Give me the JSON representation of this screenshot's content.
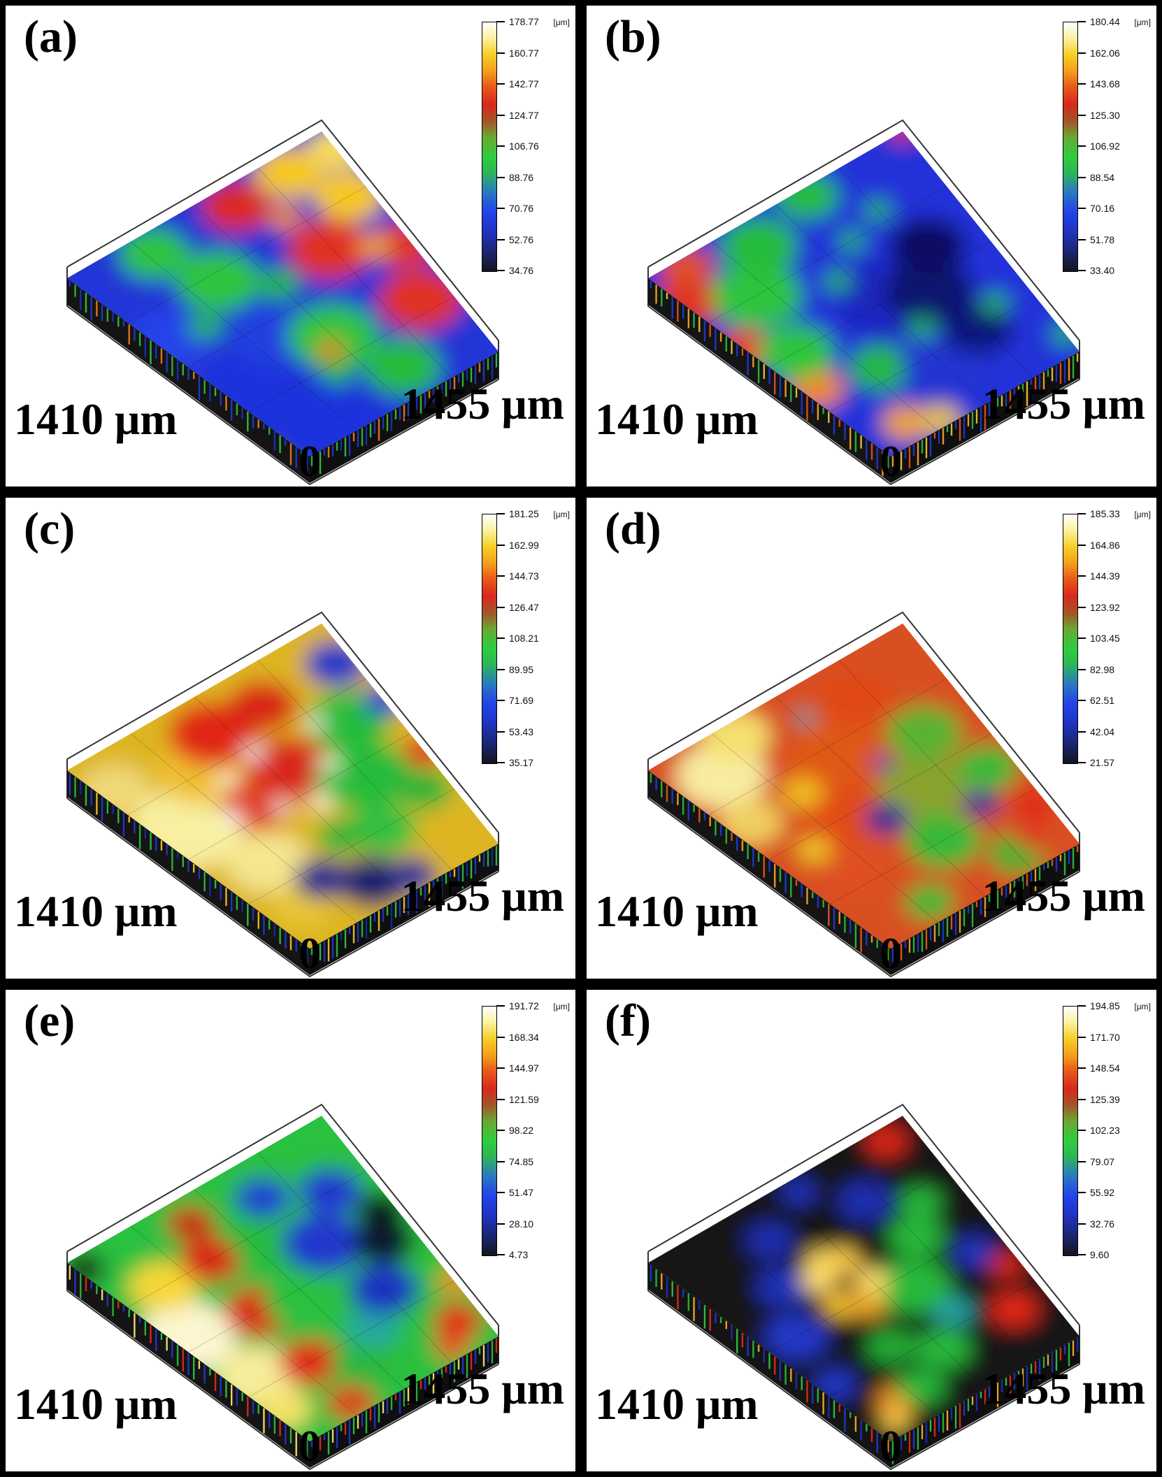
{
  "figure": {
    "axis_left": "1410 μm",
    "axis_right": "1455 μm",
    "axis_origin": "0",
    "colorbar_unit": "[μm]"
  },
  "chart_data": {
    "type": "heatmap",
    "subtype": "3d-surface-topography",
    "description": "Six 3D optical profilometry surface height maps (a)-(f) of 1455 μm × 1410 μm areas, rainbow height colormap (dark blue = low, white = high), each with its own height colorbar in μm.",
    "x_axis_label": "1455 μm",
    "y_axis_label": "1410 μm",
    "origin_label": "0",
    "z_unit": "[μm]",
    "legend_position": "right-colorbar-per-panel",
    "panels": [
      {
        "label": "(a)",
        "z_min": 34.76,
        "z_max": 178.77,
        "colorbar_ticks": [
          "178.77",
          "160.77",
          "142.77",
          "124.77",
          "106.76",
          "88.76",
          "70.76",
          "52.76",
          "34.76"
        ]
      },
      {
        "label": "(b)",
        "z_min": 33.4,
        "z_max": 180.44,
        "colorbar_ticks": [
          "180.44",
          "162.06",
          "143.68",
          "125.30",
          "106.92",
          "88.54",
          "70.16",
          "51.78",
          "33.40"
        ]
      },
      {
        "label": "(c)",
        "z_min": 35.17,
        "z_max": 181.25,
        "colorbar_ticks": [
          "181.25",
          "162.99",
          "144.73",
          "126.47",
          "108.21",
          "89.95",
          "71.69",
          "53.43",
          "35.17"
        ]
      },
      {
        "label": "(d)",
        "z_min": 21.57,
        "z_max": 185.33,
        "colorbar_ticks": [
          "185.33",
          "164.86",
          "144.39",
          "123.92",
          "103.45",
          "82.98",
          "62.51",
          "42.04",
          "21.57"
        ]
      },
      {
        "label": "(e)",
        "z_min": 4.73,
        "z_max": 191.72,
        "colorbar_ticks": [
          "191.72",
          "168.34",
          "144.97",
          "121.59",
          "98.22",
          "74.85",
          "51.47",
          "28.10",
          "4.73"
        ]
      },
      {
        "label": "(f)",
        "z_min": 9.6,
        "z_max": 194.85,
        "colorbar_ticks": [
          "194.85",
          "171.70",
          "148.54",
          "125.39",
          "102.23",
          "79.07",
          "55.92",
          "32.76",
          "9.60"
        ]
      }
    ]
  },
  "render": {
    "colorbar_gradient": [
      "#14141e 0%",
      "#1a2468 7%",
      "#1f33c0 16%",
      "#2244e8 24%",
      "#2a7ac0 32%",
      "#2db854 40%",
      "#2ecc40 46%",
      "#6aa832 54%",
      "#a05828 60%",
      "#d8281e 67%",
      "#e85818 74%",
      "#f39b1b 80%",
      "#f6cf25 87%",
      "#fbf3a8 94%",
      "#ffffff 100%"
    ],
    "panels": [
      {
        "base": "#2236d6",
        "palette": [
          "#2038c8",
          "#28b83a",
          "#1c2fb0",
          "#30c040",
          "#2038c8",
          "#e87818"
        ],
        "blobs": [
          [
            0.1,
            0.3,
            16,
            "#1e32dc"
          ],
          [
            0.22,
            0.08,
            14,
            "#1e32dc"
          ],
          [
            0.05,
            0.62,
            12,
            "#2742ea"
          ],
          [
            0.33,
            0.45,
            12,
            "#2340e0"
          ],
          [
            0.5,
            0.34,
            13,
            "#2ec43e"
          ],
          [
            0.35,
            0.72,
            12,
            "#2ec43e"
          ],
          [
            0.62,
            0.12,
            11,
            "#28bc3a"
          ],
          [
            0.27,
            0.92,
            10,
            "#2ec43e"
          ],
          [
            0.88,
            0.3,
            12,
            "#e03020"
          ],
          [
            0.74,
            0.62,
            12,
            "#e03020"
          ],
          [
            0.6,
            0.92,
            10,
            "#dc2c1e"
          ],
          [
            0.97,
            0.5,
            9,
            "#e03424"
          ],
          [
            0.93,
            0.75,
            10,
            "#f6c81e"
          ],
          [
            0.82,
            0.93,
            10,
            "#f6c81e"
          ],
          [
            1.0,
            0.92,
            8,
            "#f9dd55"
          ],
          [
            0.7,
            0.8,
            5,
            "#f08c1a"
          ],
          [
            0.88,
            0.55,
            5,
            "#f0a01a"
          ],
          [
            0.18,
            0.6,
            5,
            "#28b83a"
          ],
          [
            0.4,
            0.22,
            5,
            "#28b83a"
          ],
          [
            0.5,
            0.6,
            6,
            "#28b83a"
          ],
          [
            0.45,
            0.3,
            4,
            "#e87818"
          ]
        ]
      },
      {
        "base": "#2133d8",
        "palette": [
          "#2038c8",
          "#f0a028",
          "#28b83a",
          "#e8c030",
          "#2038c8",
          "#e05020"
        ],
        "blobs": [
          [
            0.02,
            0.85,
            10,
            "#e03020"
          ],
          [
            0.0,
            0.6,
            8,
            "#e84018"
          ],
          [
            0.12,
            0.97,
            8,
            "#e05020"
          ],
          [
            0.05,
            0.35,
            8,
            "#f08828"
          ],
          [
            0.18,
            0.08,
            7,
            "#f0a028"
          ],
          [
            0.3,
            0.03,
            6,
            "#e8c030"
          ],
          [
            0.2,
            0.75,
            13,
            "#2ec43e"
          ],
          [
            0.12,
            0.5,
            11,
            "#2ec43e"
          ],
          [
            0.35,
            0.9,
            11,
            "#28bc3a"
          ],
          [
            0.6,
            0.97,
            9,
            "#28bc3a"
          ],
          [
            0.3,
            0.3,
            9,
            "#28b83a"
          ],
          [
            0.55,
            0.5,
            16,
            "#1a28c0"
          ],
          [
            0.5,
            0.2,
            12,
            "#2036d0"
          ],
          [
            0.68,
            0.45,
            13,
            "#0c1470"
          ],
          [
            0.8,
            0.6,
            11,
            "#0a1162"
          ],
          [
            0.72,
            0.25,
            10,
            "#0e1878"
          ],
          [
            0.45,
            0.65,
            4,
            "#28b83a"
          ],
          [
            0.6,
            0.75,
            4,
            "#28b83a"
          ],
          [
            0.55,
            0.35,
            4,
            "#28b83a"
          ],
          [
            0.75,
            0.8,
            4,
            "#28b83a"
          ],
          [
            0.85,
            0.3,
            4,
            "#28b83a"
          ],
          [
            1.0,
            1.0,
            4,
            "#e03020"
          ],
          [
            1.0,
            0.08,
            4,
            "#28b83a"
          ]
        ]
      },
      {
        "base": "#ddb520",
        "palette": [
          "#2038c8",
          "#28b83a",
          "#1a2c90",
          "#30c040",
          "#2038c8",
          "#f0c020"
        ],
        "blobs": [
          [
            0.1,
            0.6,
            16,
            "#f8f0a0"
          ],
          [
            0.05,
            0.85,
            10,
            "#f0d878"
          ],
          [
            0.2,
            0.35,
            12,
            "#f5e690"
          ],
          [
            0.3,
            0.75,
            12,
            "#f0c030"
          ],
          [
            0.15,
            0.15,
            8,
            "#e8c838"
          ],
          [
            0.45,
            0.85,
            13,
            "#e02818"
          ],
          [
            0.55,
            0.6,
            13,
            "#d8281c"
          ],
          [
            0.35,
            0.55,
            10,
            "#e03c20"
          ],
          [
            0.65,
            0.85,
            10,
            "#d82818"
          ],
          [
            0.75,
            0.45,
            14,
            "#28bc3a"
          ],
          [
            0.85,
            0.65,
            12,
            "#28bc3a"
          ],
          [
            0.65,
            0.25,
            10,
            "#30c040"
          ],
          [
            0.9,
            0.3,
            8,
            "#28b438"
          ],
          [
            0.95,
            0.85,
            9,
            "#2038c8"
          ],
          [
            1.0,
            0.65,
            6,
            "#2844d0"
          ],
          [
            1.0,
            0.42,
            6,
            "#e03020"
          ],
          [
            0.45,
            0.1,
            10,
            "#15246e"
          ],
          [
            0.3,
            0.2,
            8,
            "#1a2c90"
          ],
          [
            0.6,
            0.05,
            7,
            "#202f9a"
          ],
          [
            0.5,
            0.3,
            7,
            "#28b43a"
          ],
          [
            0.25,
            0.55,
            3,
            "#ffffff"
          ],
          [
            0.35,
            0.68,
            3,
            "#fffbe0"
          ],
          [
            0.5,
            0.72,
            3,
            "#ffffff"
          ],
          [
            0.55,
            0.45,
            3.5,
            "#fff8d0"
          ],
          [
            0.42,
            0.5,
            2.5,
            "#ffffff"
          ],
          [
            0.68,
            0.55,
            3,
            "#fffbe0"
          ],
          [
            0.75,
            0.7,
            2.5,
            "#ffffff"
          ]
        ]
      },
      {
        "base": "#d85020",
        "palette": [
          "#28b83a",
          "#2038c8",
          "#30b434",
          "#e05818",
          "#2038c8",
          "#f0a028"
        ],
        "blobs": [
          [
            0.15,
            0.85,
            13,
            "#f8eca0"
          ],
          [
            0.3,
            0.95,
            10,
            "#f5e070"
          ],
          [
            0.08,
            0.65,
            9,
            "#f0d060"
          ],
          [
            0.5,
            0.7,
            14,
            "#e05818"
          ],
          [
            0.35,
            0.5,
            12,
            "#e04c18"
          ],
          [
            0.7,
            0.85,
            11,
            "#e04818"
          ],
          [
            0.2,
            0.3,
            10,
            "#e05020"
          ],
          [
            0.65,
            0.45,
            13,
            "#8aa22e"
          ],
          [
            0.8,
            0.62,
            11,
            "#58b232"
          ],
          [
            0.55,
            0.25,
            11,
            "#38b838"
          ],
          [
            0.9,
            0.4,
            9,
            "#38b838"
          ],
          [
            0.75,
            0.08,
            8,
            "#30b434"
          ],
          [
            0.3,
            0.65,
            6,
            "#f0c020"
          ],
          [
            0.15,
            0.45,
            5,
            "#f0c828"
          ],
          [
            0.45,
            0.42,
            6,
            "#1830b0"
          ],
          [
            0.45,
            0.42,
            2.5,
            "#061030"
          ],
          [
            0.78,
            0.3,
            5,
            "#1830b0"
          ],
          [
            0.78,
            0.3,
            2,
            "#0a1440"
          ],
          [
            0.6,
            0.6,
            3,
            "#2040c0"
          ],
          [
            0.52,
            0.88,
            3,
            "#20a0a8"
          ],
          [
            0.95,
            0.2,
            6,
            "#e02818"
          ],
          [
            0.85,
            0.1,
            5,
            "#e03420"
          ],
          [
            0.3,
            0.08,
            7,
            "#30b838"
          ]
        ]
      },
      {
        "base": "#2cc040",
        "palette": [
          "#f5e26a",
          "#2038c8",
          "#28b83a",
          "#e02818",
          "#2038c8",
          "#30c040"
        ],
        "blobs": [
          [
            0.05,
            0.55,
            14,
            "#fcf6d0"
          ],
          [
            0.1,
            0.3,
            12,
            "#f8ec9a"
          ],
          [
            0.15,
            0.75,
            10,
            "#f5d838"
          ],
          [
            0.05,
            0.15,
            8,
            "#f5e26a"
          ],
          [
            0.3,
            0.25,
            9,
            "#e02818"
          ],
          [
            0.32,
            0.5,
            10,
            "#dc2818"
          ],
          [
            0.35,
            0.75,
            9,
            "#d82818"
          ],
          [
            0.28,
            0.05,
            7,
            "#e03820"
          ],
          [
            0.4,
            0.9,
            7,
            "#c83018"
          ],
          [
            0.5,
            0.45,
            13,
            "#2cc040"
          ],
          [
            0.55,
            0.7,
            11,
            "#28bc3c"
          ],
          [
            0.45,
            0.15,
            9,
            "#2ab83c"
          ],
          [
            0.6,
            0.25,
            8,
            "#28a8a0"
          ],
          [
            0.7,
            0.6,
            12,
            "#2038cc"
          ],
          [
            0.75,
            0.35,
            10,
            "#1c30c0"
          ],
          [
            0.85,
            0.75,
            9,
            "#2038cc"
          ],
          [
            0.65,
            0.85,
            8,
            "#2440d0"
          ],
          [
            0.88,
            0.5,
            9,
            "#10182e"
          ],
          [
            0.95,
            0.6,
            7,
            "#0c1220"
          ],
          [
            0.9,
            0.12,
            7,
            "#e02818"
          ],
          [
            1.0,
            0.25,
            5,
            "#f08828"
          ],
          [
            0.8,
            0.05,
            5,
            "#e85020"
          ],
          [
            0.02,
            0.95,
            6,
            "#181818"
          ]
        ]
      },
      {
        "base": "#161616",
        "palette": [
          "#2038c8",
          "#28b83a",
          "#f0a828",
          "#1c2fb0",
          "#30c040",
          "#e02818"
        ],
        "blobs": [
          [
            0.12,
            0.5,
            9,
            "#2038c8"
          ],
          [
            0.25,
            0.68,
            8,
            "#1c30b8"
          ],
          [
            0.06,
            0.28,
            6,
            "#2038c8"
          ],
          [
            0.35,
            0.85,
            7,
            "#1c2fb0"
          ],
          [
            0.7,
            0.8,
            8,
            "#1c2fb0"
          ],
          [
            0.88,
            0.45,
            6,
            "#2036c0"
          ],
          [
            0.55,
            0.95,
            5,
            "#2036c0"
          ],
          [
            0.6,
            0.45,
            11,
            "#28b83a"
          ],
          [
            0.75,
            0.6,
            8,
            "#28b83a"
          ],
          [
            0.5,
            0.2,
            8,
            "#28b83a"
          ],
          [
            0.35,
            0.3,
            7,
            "#24ac36"
          ],
          [
            0.85,
            0.7,
            6,
            "#28b83a"
          ],
          [
            0.65,
            0.3,
            6,
            "#28a0a0"
          ],
          [
            0.42,
            0.58,
            9,
            "#e87818",
            0.6
          ],
          [
            0.36,
            0.64,
            5,
            "#ffe070"
          ],
          [
            0.48,
            0.66,
            5,
            "#ffd24d"
          ],
          [
            0.34,
            0.52,
            5,
            "#f8c431"
          ],
          [
            0.5,
            0.54,
            5,
            "#ffe070"
          ],
          [
            0.42,
            0.47,
            5,
            "#f0a828"
          ],
          [
            0.42,
            0.7,
            4,
            "#ffda5e"
          ],
          [
            0.42,
            0.58,
            3,
            "#0a0a0a"
          ],
          [
            0.9,
            0.95,
            6,
            "#e02818"
          ],
          [
            0.85,
            0.2,
            7,
            "#e02818"
          ],
          [
            0.95,
            0.35,
            5,
            "#d82818"
          ],
          [
            0.18,
            0.12,
            6,
            "#f09028"
          ],
          [
            0.1,
            0.06,
            4,
            "#ffd84d"
          ],
          [
            0.3,
            0.12,
            7,
            "#28b83a"
          ]
        ]
      }
    ]
  }
}
